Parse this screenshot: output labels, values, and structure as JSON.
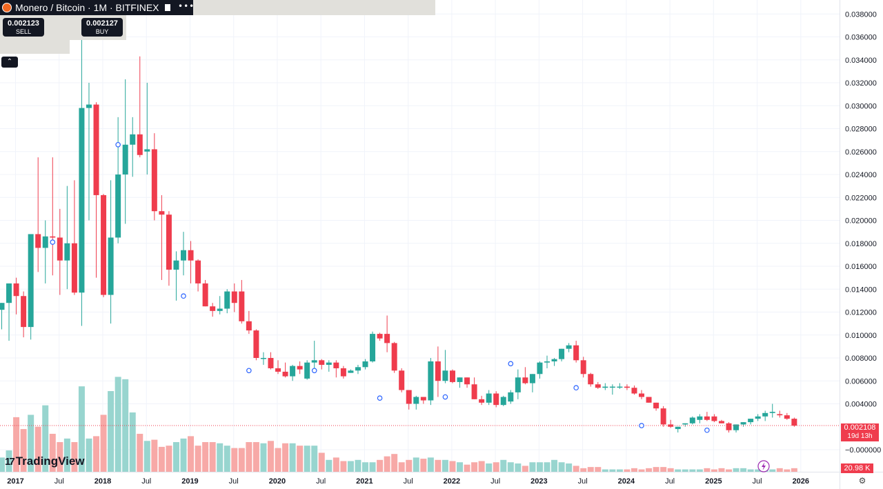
{
  "header": {
    "title": "Monero / Bitcoin · 1M · BITFINEX"
  },
  "trade": {
    "sell_price": "0.002123",
    "sell_label": "SELL",
    "buy_price": "0.002127",
    "buy_label": "BUY"
  },
  "branding": "TradingView",
  "current": {
    "price": "0.002108",
    "countdown": "19d 13h",
    "volume": "20.98 K"
  },
  "colors": {
    "up": "#26a69a",
    "down": "#ef3c4d",
    "up_vol": "#98d5cf",
    "down_vol": "#f7a9a7",
    "marker": "#2962ff",
    "lightning": "#9c27b0"
  },
  "chart_data": {
    "type": "candlestick",
    "title": "Monero / Bitcoin · 1M · BITFINEX",
    "x_tick_labels": [
      "2017",
      "Jul",
      "2018",
      "Jul",
      "2019",
      "Jul",
      "2020",
      "Jul",
      "2021",
      "Jul",
      "2022",
      "Jul",
      "2023",
      "Jul",
      "2024",
      "Jul",
      "2025",
      "Jul",
      "2026"
    ],
    "y_tick_labels": [
      "0.038000",
      "0.036000",
      "0.034000",
      "0.032000",
      "0.030000",
      "0.028000",
      "0.026000",
      "0.024000",
      "0.022000",
      "0.020000",
      "0.018000",
      "0.016000",
      "0.014000",
      "0.012000",
      "0.010000",
      "0.008000",
      "0.006000",
      "0.004000",
      "−0.000000"
    ],
    "ylim": [
      -0.0008,
      0.0395
    ],
    "grid": true,
    "series": [
      {
        "columns": [
          "open",
          "high",
          "low",
          "close",
          "volume_rel"
        ],
        "values": [
          [
            0.0122,
            0.0122,
            0.0105,
            0.0128,
            0.12
          ],
          [
            0.0128,
            0.0128,
            0.0095,
            0.0145,
            0.18
          ],
          [
            0.0145,
            0.015,
            0.0118,
            0.0134,
            0.46
          ],
          [
            0.0134,
            0.0138,
            0.0098,
            0.0107,
            0.36
          ],
          [
            0.0107,
            0.0138,
            0.0096,
            0.0188,
            0.48
          ],
          [
            0.0188,
            0.0255,
            0.0155,
            0.0176,
            0.38
          ],
          [
            0.0176,
            0.02,
            0.0145,
            0.0186,
            0.56
          ],
          [
            0.0186,
            0.0255,
            0.0152,
            0.0185,
            0.32
          ],
          [
            0.0185,
            0.021,
            0.0135,
            0.0165,
            0.25
          ],
          [
            0.0165,
            0.023,
            0.014,
            0.018,
            0.28
          ],
          [
            0.018,
            0.0235,
            0.0135,
            0.0137,
            0.25
          ],
          [
            0.0137,
            0.0368,
            0.0108,
            0.0298,
            0.72
          ],
          [
            0.0298,
            0.032,
            0.02,
            0.0301,
            0.28
          ],
          [
            0.0301,
            0.0303,
            0.015,
            0.0222,
            0.3
          ],
          [
            0.0222,
            0.0223,
            0.0133,
            0.0135,
            0.48
          ],
          [
            0.0135,
            0.0235,
            0.011,
            0.0185,
            0.68
          ],
          [
            0.0185,
            0.029,
            0.018,
            0.024,
            0.8
          ],
          [
            0.024,
            0.0323,
            0.0197,
            0.0266,
            0.78
          ],
          [
            0.0266,
            0.029,
            0.0238,
            0.0275,
            0.5
          ],
          [
            0.0275,
            0.0343,
            0.0255,
            0.0257,
            0.32
          ],
          [
            0.026,
            0.032,
            0.024,
            0.0262,
            0.26
          ],
          [
            0.0262,
            0.0276,
            0.02,
            0.0208,
            0.27
          ],
          [
            0.0208,
            0.0222,
            0.0148,
            0.0205,
            0.21
          ],
          [
            0.0205,
            0.0208,
            0.0143,
            0.0157,
            0.22
          ],
          [
            0.0157,
            0.0173,
            0.013,
            0.0165,
            0.25
          ],
          [
            0.0165,
            0.019,
            0.0152,
            0.0174,
            0.28
          ],
          [
            0.0174,
            0.0182,
            0.0145,
            0.0165,
            0.3
          ],
          [
            0.0165,
            0.0166,
            0.0138,
            0.0145,
            0.22
          ],
          [
            0.0145,
            0.0148,
            0.013,
            0.0125,
            0.25
          ],
          [
            0.0125,
            0.0128,
            0.0116,
            0.0121,
            0.25
          ],
          [
            0.0121,
            0.0134,
            0.0118,
            0.0123,
            0.24
          ],
          [
            0.0123,
            0.014,
            0.0119,
            0.0138,
            0.22
          ],
          [
            0.0138,
            0.0145,
            0.012,
            0.0128,
            0.2
          ],
          [
            0.0138,
            0.0148,
            0.011,
            0.0112,
            0.2
          ],
          [
            0.0112,
            0.0121,
            0.0101,
            0.0104,
            0.25
          ],
          [
            0.0104,
            0.0105,
            0.0078,
            0.008,
            0.25
          ],
          [
            0.008,
            0.0085,
            0.0074,
            0.008,
            0.24
          ],
          [
            0.008,
            0.0085,
            0.007,
            0.0071,
            0.26
          ],
          [
            0.0071,
            0.0078,
            0.0066,
            0.0068,
            0.2
          ],
          [
            0.0068,
            0.0076,
            0.0063,
            0.0064,
            0.24
          ],
          [
            0.0064,
            0.0074,
            0.006,
            0.0073,
            0.24
          ],
          [
            0.0073,
            0.0077,
            0.0066,
            0.007,
            0.22
          ],
          [
            0.0062,
            0.0078,
            0.0061,
            0.0076,
            0.22
          ],
          [
            0.0076,
            0.0095,
            0.007,
            0.0078,
            0.22
          ],
          [
            0.0078,
            0.0079,
            0.007,
            0.0074,
            0.16
          ],
          [
            0.0074,
            0.0078,
            0.0068,
            0.0076,
            0.1
          ],
          [
            0.0076,
            0.0078,
            0.0063,
            0.0071,
            0.12
          ],
          [
            0.0071,
            0.0073,
            0.0062,
            0.0064,
            0.09
          ],
          [
            0.0067,
            0.007,
            0.0067,
            0.0069,
            0.09
          ],
          [
            0.0069,
            0.0074,
            0.0066,
            0.0072,
            0.1
          ],
          [
            0.0072,
            0.0079,
            0.007,
            0.0077,
            0.08
          ],
          [
            0.0077,
            0.0103,
            0.0076,
            0.0101,
            0.08
          ],
          [
            0.0101,
            0.0102,
            0.0095,
            0.0097,
            0.1
          ],
          [
            0.0101,
            0.0117,
            0.0085,
            0.0093,
            0.13
          ],
          [
            0.0093,
            0.0094,
            0.0067,
            0.0069,
            0.15
          ],
          [
            0.0069,
            0.0071,
            0.005,
            0.0052,
            0.08
          ],
          [
            0.0052,
            0.0052,
            0.0035,
            0.004,
            0.1
          ],
          [
            0.004,
            0.0047,
            0.0035,
            0.0046,
            0.12
          ],
          [
            0.0046,
            0.0046,
            0.004,
            0.0043,
            0.11
          ],
          [
            0.0043,
            0.008,
            0.0039,
            0.0077,
            0.12
          ],
          [
            0.0077,
            0.009,
            0.0046,
            0.006,
            0.1
          ],
          [
            0.006,
            0.0087,
            0.0058,
            0.0069,
            0.1
          ],
          [
            0.0069,
            0.007,
            0.0058,
            0.0059,
            0.09
          ],
          [
            0.0059,
            0.0063,
            0.0054,
            0.0063,
            0.08
          ],
          [
            0.0063,
            0.0063,
            0.0054,
            0.0057,
            0.06
          ],
          [
            0.0057,
            0.0063,
            0.0052,
            0.0044,
            0.08
          ],
          [
            0.0044,
            0.0047,
            0.0039,
            0.0041,
            0.09
          ],
          [
            0.0041,
            0.0052,
            0.0039,
            0.0049,
            0.07
          ],
          [
            0.0049,
            0.0051,
            0.0037,
            0.0039,
            0.08
          ],
          [
            0.0039,
            0.0047,
            0.0038,
            0.0046,
            0.1
          ],
          [
            0.0042,
            0.0052,
            0.004,
            0.005,
            0.08
          ],
          [
            0.005,
            0.007,
            0.0044,
            0.0063,
            0.07
          ],
          [
            0.0063,
            0.0072,
            0.0057,
            0.0058,
            0.05
          ],
          [
            0.0058,
            0.0062,
            0.005,
            0.0066,
            0.08
          ],
          [
            0.0066,
            0.0077,
            0.0062,
            0.0076,
            0.08
          ],
          [
            0.0076,
            0.0082,
            0.0071,
            0.0077,
            0.08
          ],
          [
            0.0077,
            0.008,
            0.0073,
            0.0079,
            0.1
          ],
          [
            0.0079,
            0.0085,
            0.0077,
            0.0088,
            0.08
          ],
          [
            0.0088,
            0.0093,
            0.0085,
            0.0091,
            0.07
          ],
          [
            0.0091,
            0.0095,
            0.0076,
            0.0078,
            0.05
          ],
          [
            0.0078,
            0.0081,
            0.0063,
            0.0066,
            0.03
          ],
          [
            0.0066,
            0.0067,
            0.0055,
            0.0057,
            0.04
          ],
          [
            0.0057,
            0.0059,
            0.0053,
            0.0054,
            0.04
          ],
          [
            0.0054,
            0.0058,
            0.0052,
            0.0055,
            0.02
          ],
          [
            0.0055,
            0.0057,
            0.0048,
            0.0055,
            0.02
          ],
          [
            0.0055,
            0.0058,
            0.0053,
            0.0055,
            0.02
          ],
          [
            0.0055,
            0.0057,
            0.0052,
            0.0054,
            0.02
          ],
          [
            0.0054,
            0.0056,
            0.0048,
            0.0049,
            0.03
          ],
          [
            0.0049,
            0.0052,
            0.0044,
            0.0046,
            0.02
          ],
          [
            0.0046,
            0.0046,
            0.0041,
            0.0041,
            0.03
          ],
          [
            0.0041,
            0.0039,
            0.0034,
            0.0036,
            0.04
          ],
          [
            0.0036,
            0.0038,
            0.002,
            0.0022,
            0.04
          ],
          [
            0.0022,
            0.0026,
            0.0019,
            0.002,
            0.03
          ],
          [
            0.0018,
            0.002,
            0.0015,
            0.002,
            0.02
          ],
          [
            0.0022,
            0.0023,
            0.002,
            0.0023,
            0.02
          ],
          [
            0.0023,
            0.0029,
            0.0022,
            0.0028,
            0.02
          ],
          [
            0.0026,
            0.0031,
            0.0023,
            0.0029,
            0.02
          ],
          [
            0.0029,
            0.0033,
            0.0025,
            0.0026,
            0.03
          ],
          [
            0.0029,
            0.0031,
            0.0024,
            0.0025,
            0.02
          ],
          [
            0.0025,
            0.0026,
            0.0023,
            0.0023,
            0.03
          ],
          [
            0.0023,
            0.0024,
            0.0015,
            0.0017,
            0.02
          ],
          [
            0.0017,
            0.0021,
            0.0015,
            0.0022,
            0.03
          ],
          [
            0.0022,
            0.0024,
            0.002,
            0.0024,
            0.03
          ],
          [
            0.0024,
            0.0027,
            0.0022,
            0.0027,
            0.02
          ],
          [
            0.0027,
            0.0031,
            0.0025,
            0.0029,
            0.02
          ],
          [
            0.0029,
            0.0034,
            0.0025,
            0.0032,
            0.02
          ],
          [
            0.0032,
            0.004,
            0.0028,
            0.0033,
            0.02
          ],
          [
            0.0031,
            0.0034,
            0.0028,
            0.003,
            0.03
          ],
          [
            0.003,
            0.0032,
            0.0026,
            0.0027,
            0.02
          ],
          [
            0.0027,
            0.0028,
            0.002,
            0.0021,
            0.03
          ]
        ]
      }
    ]
  }
}
